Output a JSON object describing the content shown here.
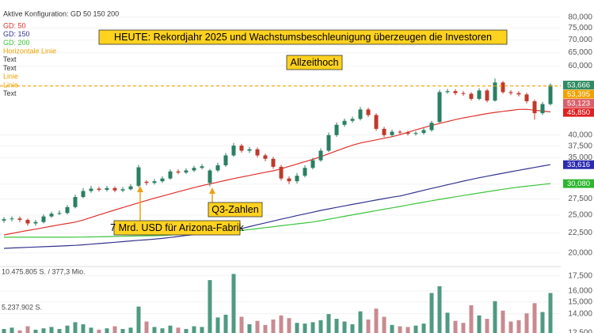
{
  "config_label": "Aktive Konfiguration: GD 50 150 200",
  "legend_extra": [
    {
      "label": "Horizontale Linie",
      "color": "#f0a000"
    },
    {
      "label": "Text",
      "color": "#333333"
    },
    {
      "label": "Text",
      "color": "#333333"
    },
    {
      "label": "Linie",
      "color": "#f0a000"
    },
    {
      "label": "Linie",
      "color": "#f0a000"
    },
    {
      "label": "Text",
      "color": "#333333"
    }
  ],
  "annotations": [
    "HEUTE: Rekordjahr 2025 und Wachstumsbeschleunigung überzeugen die Investoren",
    "Allzeithoch",
    "Q3-Zahlen",
    "7 Mrd. USD für Arizona-Fabrik"
  ],
  "chart_data": {
    "type": "candlestick",
    "log_scale": true,
    "grid": true,
    "ylim": [
      12500,
      88500
    ],
    "yticks": [
      {
        "value": 80000,
        "label": "80,000"
      },
      {
        "value": 75000,
        "label": "75,000"
      },
      {
        "value": 70000,
        "label": "70,000"
      },
      {
        "value": 65000,
        "label": "65,000"
      },
      {
        "value": 60000,
        "label": "60,000"
      },
      {
        "value": 40000,
        "label": "40,000"
      },
      {
        "value": 37500,
        "label": "37,500"
      },
      {
        "value": 35000,
        "label": "35,000"
      },
      {
        "value": 30000,
        "label": "30,000"
      },
      {
        "value": 27500,
        "label": "27,500"
      },
      {
        "value": 25000,
        "label": "25,000"
      },
      {
        "value": 22500,
        "label": "22,500"
      },
      {
        "value": 20000,
        "label": "20,000"
      },
      {
        "value": 17500,
        "label": "17,500"
      },
      {
        "value": 16000,
        "label": "16,000"
      },
      {
        "value": 15000,
        "label": "15,000"
      },
      {
        "value": 14000,
        "label": "14,000"
      },
      {
        "value": 12500,
        "label": "12,500"
      }
    ],
    "up_color": "#2a7f62",
    "down_color": "#c0392b",
    "open": [
      24200,
      24400,
      24500,
      24300,
      23800,
      24000,
      24800,
      25200,
      25300,
      26200,
      27800,
      28800,
      29200,
      29000,
      29300,
      28900,
      29100,
      29700,
      30400,
      30200,
      30500,
      31000,
      32300,
      32100,
      32500,
      33000,
      30200,
      32500,
      33500,
      35500,
      37600,
      36500,
      36800,
      35500,
      34800,
      33200,
      31000,
      30500,
      31500,
      33000,
      34500,
      36500,
      40000,
      42500,
      43500,
      44000,
      46500,
      45000,
      41500,
      40000,
      40800,
      40600,
      40300,
      40500,
      41200,
      43200,
      51500,
      51800,
      51200,
      51000,
      49500,
      52000,
      49000,
      54500,
      51500,
      51200,
      50800,
      48800,
      45500,
      48000
    ],
    "high": [
      24700,
      24800,
      24800,
      24500,
      24300,
      25100,
      25500,
      25700,
      26500,
      28200,
      29300,
      29700,
      29500,
      29700,
      29600,
      29500,
      30000,
      33600,
      30700,
      30900,
      31400,
      32700,
      32700,
      32900,
      33400,
      33700,
      32800,
      34000,
      36000,
      38200,
      38000,
      37300,
      37200,
      35900,
      35200,
      33600,
      31400,
      32000,
      33500,
      35000,
      37000,
      40600,
      43100,
      44100,
      44600,
      47200,
      47000,
      45500,
      42000,
      41300,
      41200,
      41000,
      40900,
      41700,
      43500,
      52200,
      52500,
      52400,
      51800,
      51500,
      52700,
      52500,
      55800,
      55000,
      52100,
      51800,
      51300,
      49300,
      48600,
      54200
    ],
    "low": [
      23900,
      24100,
      24000,
      23500,
      23500,
      23800,
      24600,
      25000,
      25100,
      26000,
      27600,
      28500,
      28700,
      28700,
      28600,
      28600,
      28900,
      29400,
      29800,
      29900,
      30200,
      30800,
      31800,
      31800,
      32200,
      32700,
      29600,
      32200,
      33200,
      35200,
      36100,
      36000,
      35100,
      34300,
      32800,
      30600,
      30000,
      30100,
      31200,
      32700,
      34200,
      36200,
      39600,
      42000,
      43000,
      43600,
      44500,
      41000,
      39500,
      39600,
      40200,
      39900,
      39900,
      40100,
      40800,
      43000,
      51000,
      50600,
      50400,
      49000,
      49100,
      48500,
      48700,
      51000,
      50600,
      50200,
      48200,
      43800,
      45000,
      47600
    ],
    "close": [
      24400,
      24500,
      24300,
      23800,
      24000,
      24800,
      25200,
      25300,
      26200,
      27800,
      28800,
      29200,
      29000,
      29300,
      28900,
      29100,
      29600,
      33100,
      30200,
      30500,
      31000,
      32300,
      32100,
      32500,
      33000,
      33300,
      32500,
      33500,
      35500,
      37600,
      36500,
      36800,
      35500,
      34800,
      33200,
      31000,
      30500,
      31500,
      33000,
      34500,
      36500,
      40000,
      42500,
      43500,
      44000,
      46500,
      45000,
      41500,
      40000,
      40800,
      40600,
      40300,
      40500,
      41200,
      43000,
      51500,
      51800,
      51200,
      51000,
      49500,
      52000,
      49000,
      54500,
      51500,
      51200,
      50800,
      48800,
      45500,
      48000,
      53666
    ],
    "series": [
      {
        "name": "GD: 50",
        "color": "#e0302a",
        "values": [
          22250,
          22440,
          22640,
          22830,
          23020,
          23220,
          23410,
          23610,
          23800,
          23990,
          24280,
          24650,
          25020,
          25390,
          25760,
          26130,
          26500,
          26870,
          27240,
          27600,
          27950,
          28310,
          28670,
          29020,
          29380,
          29720,
          30030,
          30340,
          30660,
          30970,
          31270,
          31560,
          31860,
          32150,
          32440,
          32820,
          33290,
          33750,
          34220,
          34680,
          35220,
          35840,
          36460,
          37080,
          37690,
          38180,
          38540,
          38900,
          39270,
          39630,
          40100,
          40670,
          41240,
          41810,
          42340,
          42830,
          43320,
          43810,
          44250,
          44630,
          45010,
          45390,
          45710,
          45980,
          46250,
          46520,
          46540,
          46310,
          46080,
          45850
        ]
      },
      {
        "name": "GD: 150",
        "color": "#33338f",
        "values": [
          20560,
          20600,
          20640,
          20680,
          20720,
          20760,
          20800,
          20840,
          20880,
          20920,
          20990,
          21070,
          21150,
          21230,
          21310,
          21390,
          21470,
          21550,
          21630,
          21710,
          21800,
          21920,
          22040,
          22170,
          22290,
          22420,
          22540,
          22670,
          22790,
          22920,
          23100,
          23360,
          23620,
          23880,
          24140,
          24400,
          24660,
          24920,
          25180,
          25420,
          25700,
          25930,
          26160,
          26390,
          26620,
          26850,
          27080,
          27310,
          27540,
          27770,
          27960,
          28280,
          28600,
          28920,
          29240,
          29560,
          29880,
          30200,
          30520,
          30840,
          31130,
          31410,
          31690,
          31970,
          32250,
          32530,
          32800,
          33080,
          33350,
          33616
        ]
      },
      {
        "name": "GD: 200",
        "color": "#3cc43c",
        "values": [
          21950,
          21950,
          21950,
          21950,
          21950,
          21950,
          21950,
          21950,
          21950,
          21960,
          21970,
          21990,
          22010,
          22030,
          22050,
          22070,
          22090,
          22110,
          22130,
          22140,
          22180,
          22240,
          22300,
          22360,
          22420,
          22480,
          22540,
          22600,
          22660,
          22740,
          22830,
          22960,
          23090,
          23220,
          23350,
          23480,
          23610,
          23740,
          23870,
          24000,
          24190,
          24400,
          24610,
          24820,
          25030,
          25240,
          25450,
          25660,
          25870,
          26080,
          26290,
          26520,
          26740,
          26970,
          27200,
          27410,
          27620,
          27830,
          28040,
          28250,
          28460,
          28670,
          28880,
          29090,
          29300,
          29480,
          29630,
          29780,
          29930,
          30080
        ]
      }
    ],
    "hline": {
      "value": 53395,
      "color": "#f0a000"
    },
    "price_labels": [
      {
        "value": 53666,
        "label": "53,666",
        "color": "#2e8b62"
      },
      {
        "value": 53395,
        "label": "53,395",
        "color": "#f0a000"
      },
      {
        "value": 53123,
        "label": "53,123",
        "color": "#d9606a"
      },
      {
        "value": 45850,
        "label": "45,850",
        "color": "#e02020"
      },
      {
        "value": 33616,
        "label": "33,616",
        "color": "#2b2bb0"
      },
      {
        "value": 30080,
        "label": "30,080",
        "color": "#2db52d"
      }
    ],
    "volume": {
      "ylim": [
        0,
        10475805
      ],
      "yticks": [
        {
          "value": 10475805,
          "label": "10.475.805 S. / 377,3 Mio."
        },
        {
          "value": 5237902,
          "label": "5.237.902 S."
        }
      ],
      "up_color": "#4f9a82",
      "down_color": "#c98a90",
      "values": [
        2100000,
        2300000,
        1900000,
        2500000,
        2000000,
        2200000,
        2400000,
        2100000,
        2600000,
        3100000,
        2800000,
        2300000,
        2000000,
        2200000,
        2500000,
        2100000,
        2300000,
        5400000,
        3200000,
        2400000,
        2200000,
        2600000,
        2300000,
        2100000,
        2500000,
        2400000,
        9300000,
        3800000,
        4200000,
        10200000,
        3900000,
        2800000,
        3300000,
        2700000,
        3500000,
        4100000,
        3700000,
        3000000,
        2900000,
        3100000,
        3400000,
        4300000,
        3600000,
        3200000,
        2800000,
        4700000,
        3500000,
        5100000,
        3900000,
        2700000,
        2500000,
        2400000,
        2600000,
        2900000,
        7400000,
        8400000,
        4500000,
        3300000,
        3000000,
        5600000,
        4100000,
        3600000,
        6200000,
        4800000,
        3200000,
        3400000,
        4400000,
        5900000,
        4600000,
        7400000
      ]
    }
  }
}
